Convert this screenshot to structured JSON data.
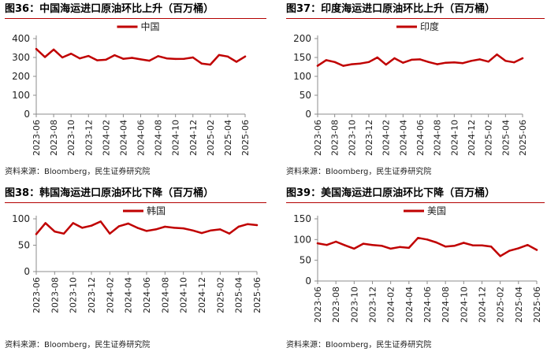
{
  "panels": [
    {
      "title": "图36：中国海运进口原油环比上升（百万桶）",
      "source": "资料来源：Bloomberg，民生证券研究院"
    },
    {
      "title": "图37：印度海运进口原油环比上升（百万桶）",
      "source": "资料来源：Bloomberg，民生证券研究院"
    },
    {
      "title": "图38：韩国海运进口原油环比下降（百万桶）",
      "source": "资料来源：Bloomberg，民生证券研究院"
    },
    {
      "title": "图39：美国海运进口原油环比下降（百万桶）",
      "source": "资料来源：Bloomberg，民生证券研究院"
    }
  ],
  "chart_data": [
    {
      "type": "line",
      "title": "图36：中国海运进口原油环比上升（百万桶）",
      "ylim": [
        0,
        400
      ],
      "yticks": [
        0,
        100,
        200,
        300,
        400
      ],
      "xtick_labels": [
        "2023-06",
        "2023-08",
        "2023-10",
        "2023-12",
        "2024-02",
        "2024-04",
        "2024-06",
        "2024-08",
        "2024-10",
        "2024-12",
        "2025-02",
        "2025-04",
        "2025-06"
      ],
      "legend_position": "top-center",
      "grid": false,
      "color": "#c00000",
      "series": [
        {
          "name": "中国",
          "values": [
            345,
            302,
            342,
            300,
            320,
            295,
            308,
            285,
            288,
            312,
            293,
            298,
            290,
            283,
            307,
            295,
            292,
            293,
            300,
            268,
            262,
            313,
            305,
            277,
            305
          ]
        }
      ]
    },
    {
      "type": "line",
      "title": "图37：印度海运进口原油环比上升（百万桶）",
      "ylim": [
        0,
        200
      ],
      "yticks": [
        0,
        50,
        100,
        150,
        200
      ],
      "xtick_labels": [
        "2023-06",
        "2023-08",
        "2023-10",
        "2023-12",
        "2024-02",
        "2024-04",
        "2024-06",
        "2024-08",
        "2024-10",
        "2024-12",
        "2025-02",
        "2025-04",
        "2025-06"
      ],
      "legend_position": "top-center",
      "grid": false,
      "color": "#c00000",
      "series": [
        {
          "name": "印度",
          "values": [
            128,
            143,
            138,
            128,
            132,
            134,
            138,
            150,
            131,
            148,
            136,
            144,
            145,
            138,
            132,
            136,
            137,
            135,
            141,
            145,
            139,
            158,
            141,
            137,
            148
          ]
        }
      ]
    },
    {
      "type": "line",
      "title": "图38：韩国海运进口原油环比下降（百万桶）",
      "ylim": [
        0,
        100
      ],
      "yticks": [
        0,
        50,
        100
      ],
      "xtick_labels": [
        "2023-06",
        "2023-08",
        "2023-10",
        "2023-12",
        "2024-02",
        "2024-04",
        "2024-06",
        "2024-08",
        "2024-10",
        "2024-12",
        "2025-02",
        "2025-04",
        "2025-06"
      ],
      "legend_position": "top-center",
      "grid": false,
      "color": "#c00000",
      "series": [
        {
          "name": "韩国",
          "values": [
            71,
            92,
            76,
            72,
            92,
            83,
            87,
            95,
            72,
            86,
            91,
            83,
            77,
            80,
            85,
            83,
            82,
            78,
            73,
            78,
            80,
            72,
            85,
            90,
            88
          ]
        }
      ]
    },
    {
      "type": "line",
      "title": "图39：美国海运进口原油环比下降（百万桶）",
      "ylim": [
        0,
        150
      ],
      "yticks": [
        0,
        50,
        100,
        150
      ],
      "xtick_labels": [
        "2023-06",
        "2023-08",
        "2023-10",
        "2023-12",
        "2024-02",
        "2024-04",
        "2024-06",
        "2024-08",
        "2024-10",
        "2024-12",
        "2025-02",
        "2025-04",
        "2025-06"
      ],
      "legend_position": "top-center",
      "grid": false,
      "color": "#c00000",
      "series": [
        {
          "name": "美国",
          "values": [
            91,
            87,
            95,
            86,
            78,
            90,
            87,
            85,
            78,
            82,
            80,
            104,
            100,
            93,
            83,
            85,
            92,
            86,
            86,
            83,
            60,
            73,
            79,
            87,
            75
          ]
        }
      ]
    }
  ]
}
